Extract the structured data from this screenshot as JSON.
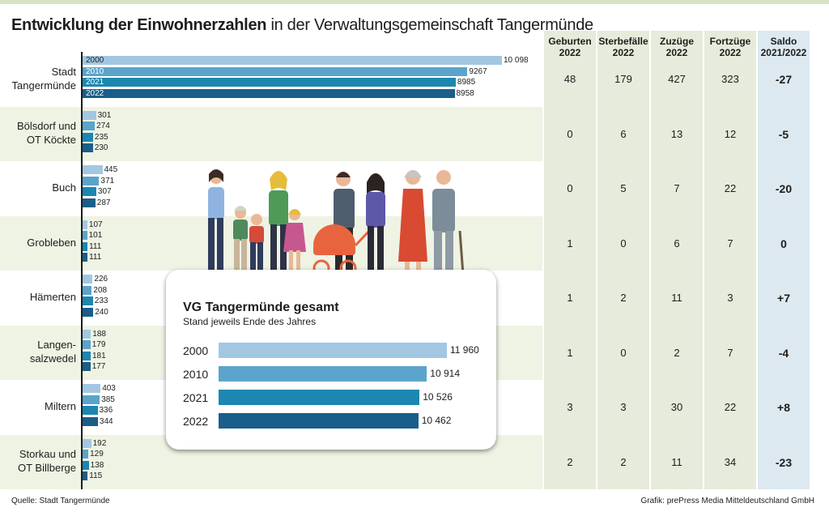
{
  "title": {
    "bold": "Entwicklung der Einwohnerzahlen",
    "rest": "in der Verwaltungsgemeinschaft Tangermünde"
  },
  "colors": {
    "2000": "#a3c7e2",
    "2010": "#5aa4cb",
    "2021": "#1c87b1",
    "2022": "#1a5e8a",
    "row_band": "#eef3e4",
    "col_band": "#e6ebdb",
    "saldo_band": "#dde9f0"
  },
  "chart_data": [
    {
      "type": "bar",
      "orientation": "horizontal",
      "series_years": [
        "2000",
        "2010",
        "2021",
        "2022"
      ],
      "categories": [
        "Stadt Tangermünde",
        "Bölsdorf und OT Köckte",
        "Buch",
        "Grobleben",
        "Hämerten",
        "Langen-salzwedel",
        "Miltern",
        "Storkau und OT Billberge"
      ],
      "category_lines": [
        [
          "Stadt",
          "Tangermünde"
        ],
        [
          "Bölsdorf und",
          "OT Köckte"
        ],
        [
          "Buch"
        ],
        [
          "Grobleben"
        ],
        [
          "Hämerten"
        ],
        [
          "Langen-",
          "salzwedel"
        ],
        [
          "Miltern"
        ],
        [
          "Storkau und",
          "OT Billberge"
        ]
      ],
      "values": [
        [
          10098,
          9267,
          8985,
          8958
        ],
        [
          301,
          274,
          235,
          230
        ],
        [
          445,
          371,
          307,
          287
        ],
        [
          107,
          101,
          111,
          111
        ],
        [
          226,
          208,
          233,
          240
        ],
        [
          188,
          179,
          181,
          177
        ],
        [
          403,
          385,
          336,
          344
        ],
        [
          192,
          129,
          138,
          115
        ]
      ],
      "value_labels": [
        [
          "10 098",
          "9267",
          "8985",
          "8958"
        ],
        [
          "301",
          "274",
          "235",
          "230"
        ],
        [
          "445",
          "371",
          "307",
          "287"
        ],
        [
          "107",
          "101",
          "111",
          "111"
        ],
        [
          "226",
          "208",
          "233",
          "240"
        ],
        [
          "188",
          "179",
          "181",
          "177"
        ],
        [
          "403",
          "385",
          "336",
          "344"
        ],
        [
          "192",
          "129",
          "138",
          "115"
        ]
      ]
    },
    {
      "type": "table",
      "columns": [
        {
          "top": "Geburten",
          "bottom": "2022"
        },
        {
          "top": "Sterbefälle",
          "bottom": "2022"
        },
        {
          "top": "Zuzüge",
          "bottom": "2022"
        },
        {
          "top": "Fortzüge",
          "bottom": "2022"
        },
        {
          "top": "Saldo",
          "bottom": "2021/2022"
        }
      ],
      "rows": [
        [
          "48",
          "179",
          "427",
          "323",
          "-27"
        ],
        [
          "0",
          "6",
          "13",
          "12",
          "-5"
        ],
        [
          "0",
          "5",
          "7",
          "22",
          "-20"
        ],
        [
          "1",
          "0",
          "6",
          "7",
          "0"
        ],
        [
          "1",
          "2",
          "11",
          "3",
          "+7"
        ],
        [
          "1",
          "0",
          "2",
          "7",
          "-4"
        ],
        [
          "3",
          "3",
          "30",
          "22",
          "+8"
        ],
        [
          "2",
          "2",
          "11",
          "34",
          "-23"
        ]
      ]
    },
    {
      "type": "bar",
      "orientation": "horizontal",
      "title": "VG Tangermünde gesamt",
      "subtitle": "Stand jeweils Ende des Jahres",
      "categories": [
        "2000",
        "2010",
        "2021",
        "2022"
      ],
      "values": [
        11960,
        10914,
        10526,
        10462
      ],
      "value_labels": [
        "11 960",
        "10 914",
        "10 526",
        "10 462"
      ]
    }
  ],
  "footer": {
    "source": "Quelle: Stadt Tangermünde",
    "credit": "Grafik: prePress Media Mitteldeutschland GmbH"
  },
  "illustration": "family-group-illustration"
}
